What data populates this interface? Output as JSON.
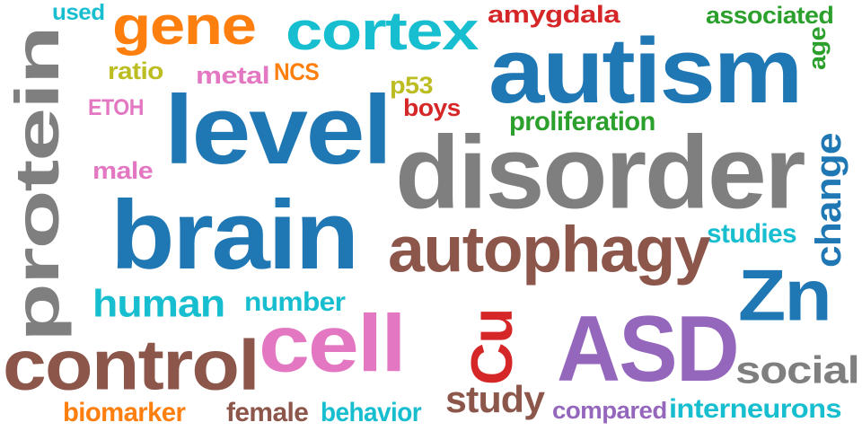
{
  "words": [
    {
      "key": "used",
      "text": "used",
      "color": "#17becf",
      "rotated": false
    },
    {
      "key": "gene",
      "text": "gene",
      "color": "#ff7f0e",
      "rotated": false
    },
    {
      "key": "cortex",
      "text": "cortex",
      "color": "#17becf",
      "rotated": false
    },
    {
      "key": "amygdala",
      "text": "amygdala",
      "color": "#d62728",
      "rotated": false
    },
    {
      "key": "associated",
      "text": "associated",
      "color": "#2ca02c",
      "rotated": false
    },
    {
      "key": "autism",
      "text": "autism",
      "color": "#1f77b4",
      "rotated": false
    },
    {
      "key": "age",
      "text": "age",
      "color": "#2ca02c",
      "rotated": true
    },
    {
      "key": "protein",
      "text": "protein",
      "color": "#7f7f7f",
      "rotated": true
    },
    {
      "key": "ratio",
      "text": "ratio",
      "color": "#bcbd22",
      "rotated": false
    },
    {
      "key": "metal",
      "text": "metal",
      "color": "#e377c2",
      "rotated": false
    },
    {
      "key": "NCS",
      "text": "NCS",
      "color": "#ff7f0e",
      "rotated": false
    },
    {
      "key": "p53",
      "text": "p53",
      "color": "#bcbd22",
      "rotated": false
    },
    {
      "key": "ETOH",
      "text": "ETOH",
      "color": "#e377c2",
      "rotated": false
    },
    {
      "key": "level",
      "text": "level",
      "color": "#1f77b4",
      "rotated": false
    },
    {
      "key": "boys",
      "text": "boys",
      "color": "#d62728",
      "rotated": false
    },
    {
      "key": "proliferation",
      "text": "proliferation",
      "color": "#2ca02c",
      "rotated": false
    },
    {
      "key": "disorder",
      "text": "disorder",
      "color": "#7f7f7f",
      "rotated": false
    },
    {
      "key": "change",
      "text": "change",
      "color": "#1f77b4",
      "rotated": true
    },
    {
      "key": "male",
      "text": "male",
      "color": "#e377c2",
      "rotated": false
    },
    {
      "key": "brain",
      "text": "brain",
      "color": "#1f77b4",
      "rotated": false
    },
    {
      "key": "studies",
      "text": "studies",
      "color": "#17becf",
      "rotated": false
    },
    {
      "key": "autophagy",
      "text": "autophagy",
      "color": "#8c564b",
      "rotated": false
    },
    {
      "key": "Zn",
      "text": "Zn",
      "color": "#1f77b4",
      "rotated": false
    },
    {
      "key": "human",
      "text": "human",
      "color": "#17becf",
      "rotated": false
    },
    {
      "key": "number",
      "text": "number",
      "color": "#17becf",
      "rotated": false
    },
    {
      "key": "cell",
      "text": "cell",
      "color": "#e377c2",
      "rotated": false
    },
    {
      "key": "Cu",
      "text": "Cu",
      "color": "#d62728",
      "rotated": true
    },
    {
      "key": "ASD",
      "text": "ASD",
      "color": "#9467bd",
      "rotated": false
    },
    {
      "key": "control",
      "text": "control",
      "color": "#8c564b",
      "rotated": false
    },
    {
      "key": "social",
      "text": "social",
      "color": "#7f7f7f",
      "rotated": false
    },
    {
      "key": "study",
      "text": "study",
      "color": "#8c564b",
      "rotated": false
    },
    {
      "key": "biomarker",
      "text": "biomarker",
      "color": "#ff7f0e",
      "rotated": false
    },
    {
      "key": "female",
      "text": "female",
      "color": "#8c564b",
      "rotated": false
    },
    {
      "key": "behavior",
      "text": "behavior",
      "color": "#17becf",
      "rotated": false
    },
    {
      "key": "compared",
      "text": "compared",
      "color": "#9467bd",
      "rotated": false
    },
    {
      "key": "interneurons",
      "text": "interneurons",
      "color": "#17becf",
      "rotated": false
    }
  ]
}
